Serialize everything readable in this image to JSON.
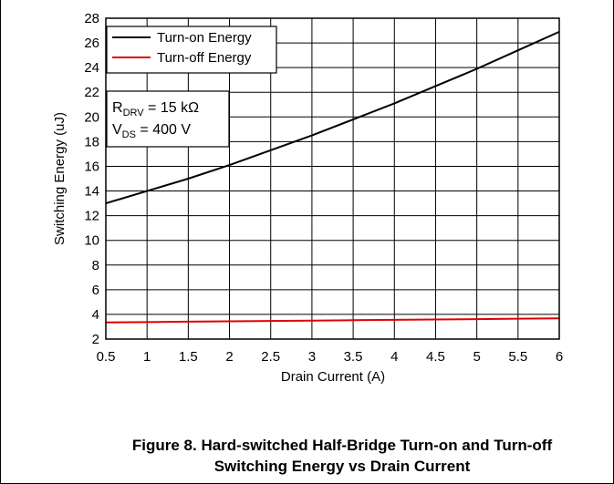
{
  "chart_data": {
    "type": "line",
    "x": [
      0.5,
      1,
      1.5,
      2,
      2.5,
      3,
      3.5,
      4,
      4.5,
      5,
      5.5,
      6
    ],
    "series": [
      {
        "name": "Turn-on Energy",
        "color": "#000000",
        "values": [
          13.0,
          14.0,
          15.0,
          16.1,
          17.3,
          18.5,
          19.8,
          21.1,
          22.5,
          23.9,
          25.4,
          26.9
        ]
      },
      {
        "name": "Turn-off Energy",
        "color": "#e00000",
        "values": [
          3.35,
          3.38,
          3.41,
          3.44,
          3.47,
          3.5,
          3.53,
          3.56,
          3.59,
          3.62,
          3.65,
          3.68
        ]
      }
    ],
    "xlabel": "Drain Current (A)",
    "ylabel": "Switching Energy (uJ)",
    "xlim": [
      0.5,
      6
    ],
    "ylim": [
      2,
      28
    ],
    "xticks": [
      "0.5",
      "1",
      "1.5",
      "2",
      "2.5",
      "3",
      "3.5",
      "4",
      "4.5",
      "5",
      "5.5",
      "6"
    ],
    "yticks": [
      "2",
      "4",
      "6",
      "8",
      "10",
      "12",
      "14",
      "16",
      "18",
      "20",
      "22",
      "24",
      "26",
      "28"
    ],
    "grid": true,
    "legend_position": "top-left",
    "annotation": {
      "line1_main": "R",
      "line1_sub": "DRV",
      "line1_rest": " = 15 kΩ",
      "line2_main": "V",
      "line2_sub": "DS",
      "line2_rest": " = 400 V"
    }
  },
  "caption": {
    "line1": "Figure 8. Hard-switched Half-Bridge Turn-on and Turn-off",
    "line2": "Switching Energy vs Drain Current"
  }
}
